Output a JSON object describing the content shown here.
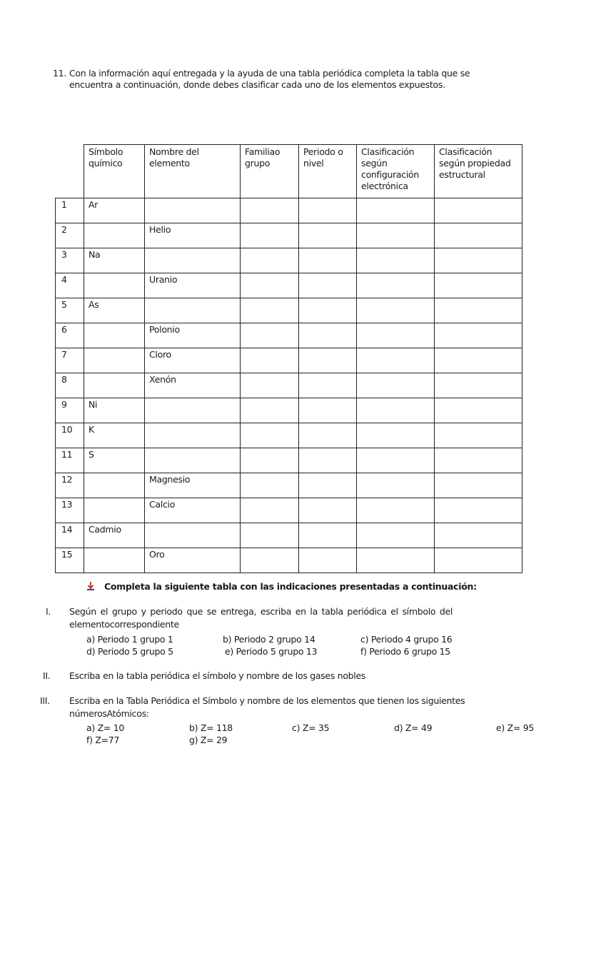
{
  "question": {
    "number": "11.",
    "line1": "Con la información aquí entregada y la ayuda de una tabla periódica completa la tabla que se",
    "line2": "encuentra a continuación, donde debes clasificar cada uno de los elementos expuestos."
  },
  "table": {
    "headers": [
      "",
      "Símbolo químico",
      "Nombre del elemento",
      "Familiao grupo",
      "Periodo o nivel",
      "Clasificación según configuración electrónica",
      "Clasificación según propiedad estructural"
    ],
    "rows": [
      {
        "n": "1",
        "symbol": "Ar",
        "name": ""
      },
      {
        "n": "2",
        "symbol": "",
        "name": "Helio"
      },
      {
        "n": "3",
        "symbol": "Na",
        "name": ""
      },
      {
        "n": "4",
        "symbol": "",
        "name": "Uranio"
      },
      {
        "n": "5",
        "symbol": "As",
        "name": ""
      },
      {
        "n": "6",
        "symbol": "",
        "name": "Polonio"
      },
      {
        "n": "7",
        "symbol": "",
        "name": "Cloro"
      },
      {
        "n": "8",
        "symbol": "",
        "name": "Xenón"
      },
      {
        "n": "9",
        "symbol": "Ni",
        "name": ""
      },
      {
        "n": "10",
        "symbol": "K",
        "name": ""
      },
      {
        "n": "11",
        "symbol": "S",
        "name": ""
      },
      {
        "n": "12",
        "symbol": "",
        "name": "Magnesio"
      },
      {
        "n": "13",
        "symbol": "",
        "name": "Calcio"
      },
      {
        "n": "14",
        "symbol": "Cadmio",
        "name": ""
      },
      {
        "n": "15",
        "symbol": "",
        "name": "Oro"
      }
    ]
  },
  "instructions": {
    "heading_icon": "down-arrow-bullet-icon",
    "heading": "Completa la siguiente tabla con las indicaciones presentadas a continuación:",
    "items": [
      {
        "roman": "I.",
        "line1": "Según el grupo y periodo que se entrega, escriba en la tabla periódica el símbolo del",
        "line2": "elementocorrespondiente",
        "sub": [
          "a) Periodo 1 grupo 1",
          "b) Periodo 2 grupo 14",
          "c) Periodo 4 grupo 16",
          "d) Periodo 5 grupo 5",
          "e) Periodo 5 grupo 13",
          "f) Periodo 6 grupo 15"
        ]
      },
      {
        "roman": "II.",
        "line1": "Escriba en la tabla periódica el símbolo y nombre de los gases nobles"
      },
      {
        "roman": "III.",
        "line1": "Escriba en la Tabla Periódica el Símbolo y nombre de los elementos que tienen los siguientes",
        "line2": "númerosAtómicos:",
        "sub": [
          "a) Z= 10",
          "b) Z= 118",
          "c) Z= 35",
          "d) Z= 49",
          "e) Z= 95",
          "f) Z=77",
          "g) Z= 29"
        ]
      }
    ]
  }
}
